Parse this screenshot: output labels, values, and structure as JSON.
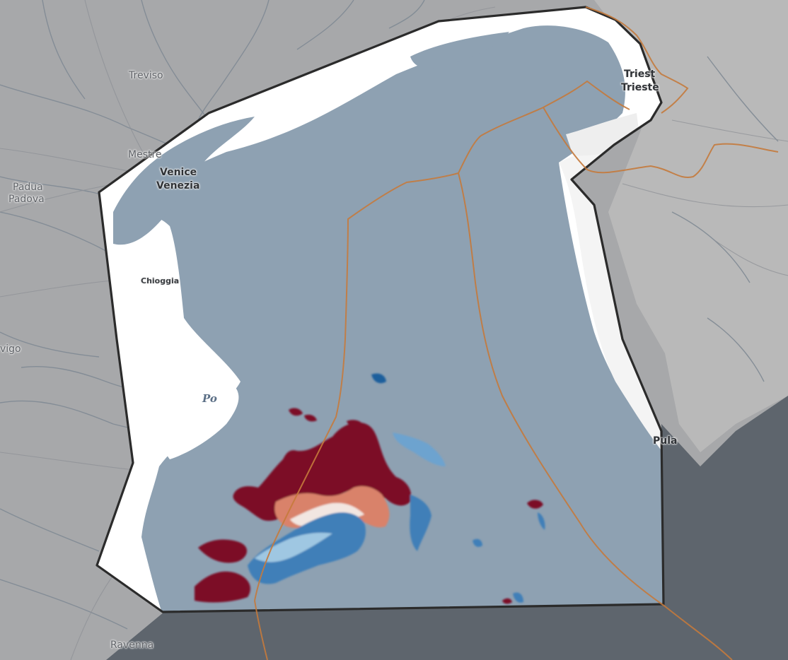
{
  "map": {
    "colors": {
      "land": "#a9aaac",
      "land_hills": "#b8b8b8",
      "sea_outside": "#5d646c",
      "sea_inside": "#8da0b1",
      "coast_fill": "#ffffff",
      "aoi_outline": "#2b2b2b",
      "boundary": "#c57a3c",
      "river": "#7e8791",
      "heat_high": "#7b1128",
      "heat_mid_high": "#d77d66",
      "heat_neutral": "#f4ebe6",
      "heat_mid_low": "#8ebfdc",
      "heat_low": "#1f5f9c"
    },
    "labels": {
      "treviso": "Treviso",
      "mestre": "Mestre",
      "venice_en": "Venice",
      "venice_it": "Venezia",
      "padua_en": "Padua",
      "padua_it": "Padova",
      "chioggia": "Chioggia",
      "rovigo": "vigo",
      "po": "Po",
      "trieste_si": "Triest",
      "trieste_it": "Trieste",
      "pula": "Pula",
      "ravenna": "Ravenna"
    }
  }
}
